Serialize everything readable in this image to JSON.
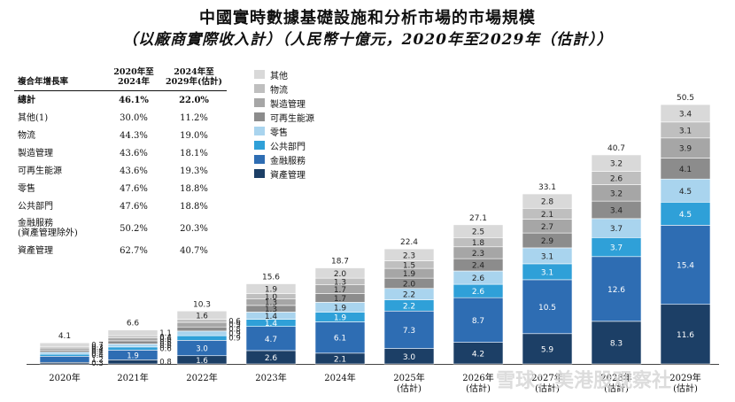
{
  "title_line1": "中國實時數據基礎設施和分析市場的市場規模",
  "title_line2": "（以廠商實際收入計）（人民幣十億元，2020年至2029年（估計））",
  "cagr_table": {
    "col0": "複合年增長率",
    "col1": "2020年至\n2024年",
    "col2": "2024年至\n2029年(估計)",
    "rows": [
      {
        "label": "總計",
        "a": "46.1%",
        "b": "22.0%",
        "bold": true
      },
      {
        "label": "其他(1)",
        "a": "30.0%",
        "b": "11.2%"
      },
      {
        "label": "物流",
        "a": "44.3%",
        "b": "19.0%"
      },
      {
        "label": "製造管理",
        "a": "43.6%",
        "b": "18.1%"
      },
      {
        "label": "可再生能源",
        "a": "43.6%",
        "b": "19.3%"
      },
      {
        "label": "零售",
        "a": "47.6%",
        "b": "18.8%"
      },
      {
        "label": "公共部門",
        "a": "47.6%",
        "b": "18.8%"
      },
      {
        "label": "金融服務\n(資產管理除外)",
        "a": "50.2%",
        "b": "20.3%",
        "tall": true
      },
      {
        "label": "資產管理",
        "a": "62.7%",
        "b": "40.7%"
      }
    ]
  },
  "watermark": "雪球：美港股观察社",
  "colors": {
    "other": "#d9d9d9",
    "logistics": "#bfbfbf",
    "manufacturing": "#a6a6a6",
    "renewable": "#8c8c8c",
    "retail": "#a9d4ee",
    "public": "#2fa0d8",
    "financial": "#2e6db3",
    "asset": "#1c3f66"
  },
  "chart_data": {
    "type": "bar",
    "stacked": true,
    "categories": [
      "2020年",
      "2021年",
      "2022年",
      "2023年",
      "2024年",
      "2025年\n(估計)",
      "2026年\n(估計)",
      "2027年\n(估計)",
      "2028年\n(估計)",
      "2029年\n(估計)"
    ],
    "totals": [
      "4.1",
      "6.6",
      "10.3",
      "15.6",
      "18.7",
      "22.4",
      "27.1",
      "33.1",
      "40.7",
      "50.5"
    ],
    "series": [
      {
        "name": "資產管理",
        "key": "asset",
        "values": [
          0.3,
          0.8,
          1.6,
          2.6,
          2.1,
          3.0,
          4.2,
          5.9,
          8.3,
          11.6
        ]
      },
      {
        "name": "金融服務",
        "key": "financial",
        "values": [
          1.2,
          1.9,
          3.0,
          4.7,
          6.1,
          7.3,
          8.7,
          10.5,
          12.6,
          15.4
        ]
      },
      {
        "name": "公共部門",
        "key": "public",
        "values": [
          0.4,
          0.6,
          0.9,
          1.4,
          1.9,
          2.2,
          2.6,
          3.1,
          3.7,
          4.5
        ]
      },
      {
        "name": "零售",
        "key": "retail",
        "values": [
          0.4,
          0.6,
          0.9,
          1.4,
          1.9,
          2.2,
          2.6,
          3.1,
          3.7,
          4.5
        ]
      },
      {
        "name": "可再生能源",
        "key": "renewable",
        "values": [
          0.4,
          0.6,
          0.8,
          1.3,
          1.7,
          2.0,
          2.4,
          2.9,
          3.4,
          4.1
        ]
      },
      {
        "name": "製造管理",
        "key": "manufacturing",
        "values": [
          0.4,
          0.6,
          0.9,
          1.3,
          1.7,
          1.9,
          2.3,
          2.7,
          3.2,
          3.9
        ]
      },
      {
        "name": "物流",
        "key": "logistics",
        "values": [
          0.3,
          0.4,
          0.6,
          1.0,
          1.3,
          1.5,
          1.8,
          2.1,
          2.6,
          3.1
        ]
      },
      {
        "name": "其他",
        "key": "other",
        "values": [
          0.7,
          1.1,
          1.6,
          1.9,
          2.0,
          2.3,
          2.5,
          2.8,
          3.2,
          3.4
        ]
      }
    ],
    "legend_order": [
      "其他",
      "物流",
      "製造管理",
      "可再生能源",
      "零售",
      "公共部門",
      "金融服務",
      "資產管理"
    ],
    "legend_placement": "top-left",
    "grid": false
  }
}
